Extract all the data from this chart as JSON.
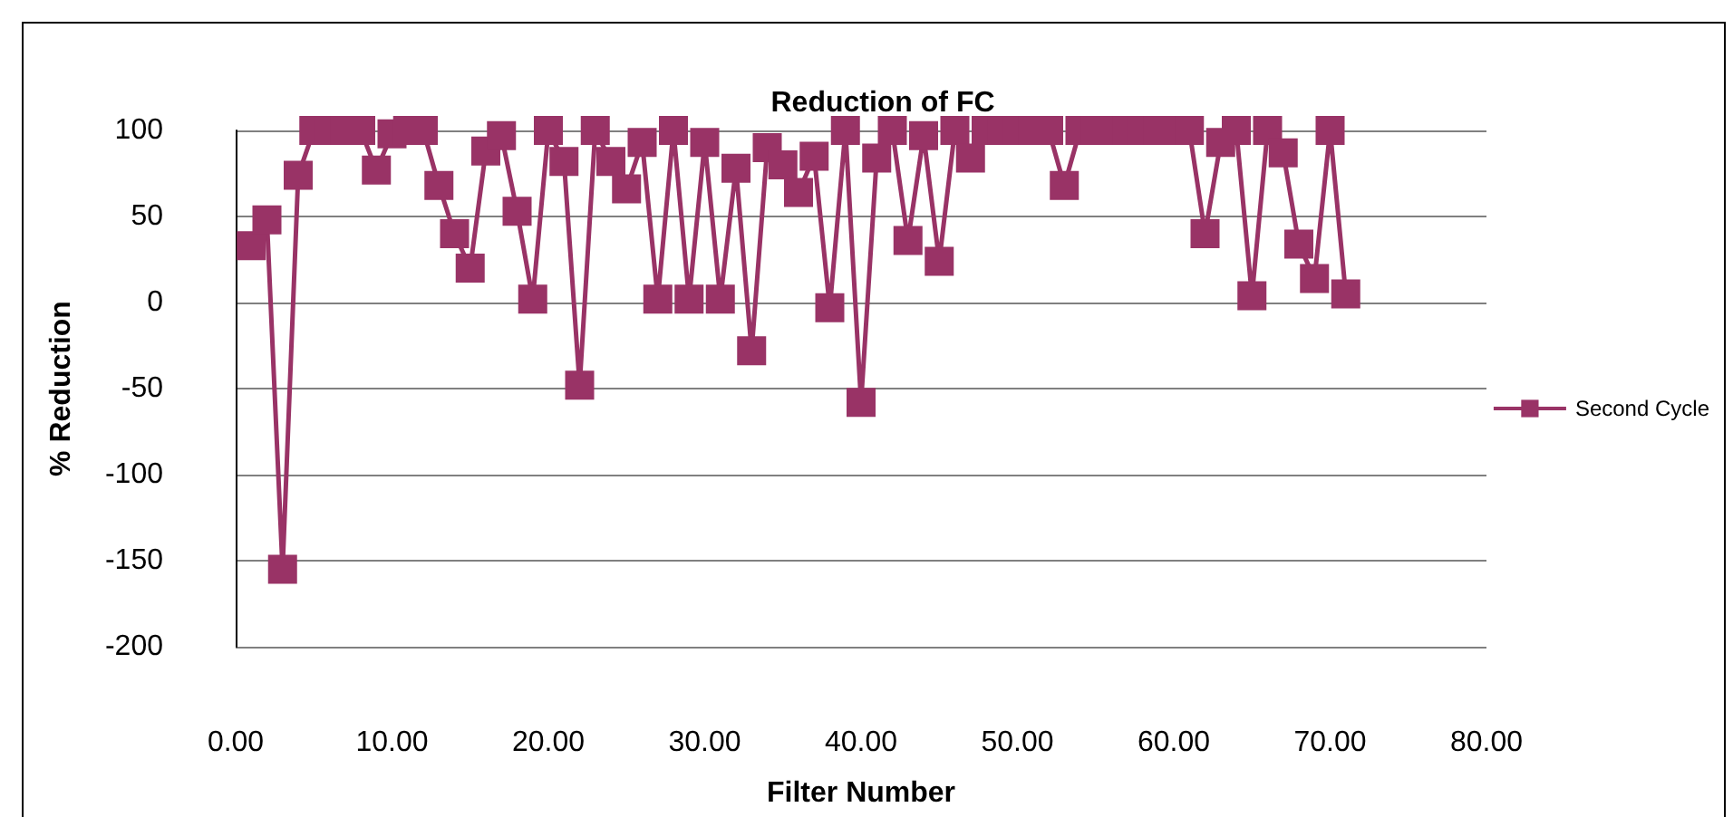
{
  "chart_data": {
    "type": "line",
    "title": "Reduction of FC",
    "xlabel": "Filter Number",
    "ylabel": "% Reduction",
    "x": [
      1,
      2,
      3,
      4,
      5,
      6,
      7,
      8,
      9,
      10,
      11,
      12,
      13,
      14,
      15,
      16,
      17,
      18,
      19,
      20,
      21,
      22,
      23,
      24,
      25,
      26,
      27,
      28,
      29,
      30,
      31,
      32,
      33,
      34,
      35,
      36,
      37,
      38,
      39,
      40,
      41,
      42,
      43,
      44,
      45,
      46,
      47,
      48,
      49,
      50,
      51,
      52,
      53,
      54,
      55,
      56,
      57,
      58,
      59,
      60,
      61,
      62,
      63,
      64,
      65,
      66,
      67,
      68,
      69,
      70,
      71
    ],
    "series": [
      {
        "name": "Second Cycle",
        "color": "#993366",
        "values": [
          33,
          48,
          -155,
          74,
          100,
          100,
          100,
          100,
          77,
          98,
          100,
          100,
          68,
          40,
          20,
          88,
          97,
          53,
          2,
          100,
          82,
          -48,
          100,
          82,
          66,
          93,
          2,
          100,
          2,
          93,
          2,
          78,
          -28,
          90,
          80,
          64,
          85,
          -3,
          100,
          -58,
          84,
          100,
          36,
          97,
          24,
          100,
          84,
          100,
          100,
          100,
          100,
          100,
          68,
          100,
          100,
          100,
          100,
          100,
          100,
          100,
          100,
          40,
          93,
          100,
          4,
          100,
          87,
          34,
          14,
          100,
          5
        ]
      }
    ],
    "xlim": [
      0,
      80
    ],
    "xticks": [
      {
        "value": 0,
        "label": "0.00"
      },
      {
        "value": 10,
        "label": "10.00"
      },
      {
        "value": 20,
        "label": "20.00"
      },
      {
        "value": 30,
        "label": "30.00"
      },
      {
        "value": 40,
        "label": "40.00"
      },
      {
        "value": 50,
        "label": "50.00"
      },
      {
        "value": 60,
        "label": "60.00"
      },
      {
        "value": 70,
        "label": "70.00"
      },
      {
        "value": 80,
        "label": "80.00"
      }
    ],
    "ylim": [
      -200,
      100
    ],
    "yticks": [
      -200,
      -150,
      -100,
      -50,
      0,
      50,
      100
    ],
    "grid": "y",
    "legend": "right",
    "marker": "square",
    "line_style": "solid"
  }
}
